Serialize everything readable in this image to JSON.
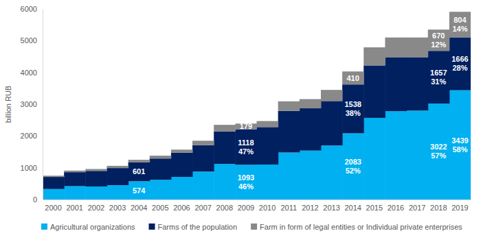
{
  "chart_data": {
    "type": "bar",
    "stacked": true,
    "grid": false,
    "legend": "bottom",
    "y_label": "billion RUB",
    "categories": [
      "2000",
      "2001",
      "2002",
      "2003",
      "2004",
      "2005",
      "2006",
      "2007",
      "2008",
      "2009",
      "2010",
      "2011",
      "2012",
      "2013",
      "2014",
      "2015",
      "2016",
      "2017",
      "2018",
      "2019"
    ],
    "ylim": [
      0,
      6000
    ],
    "yticks": [
      0,
      1000,
      2000,
      3000,
      4000,
      5000,
      6000
    ],
    "series": [
      {
        "name": "Agricultural organizations",
        "color": "#00b0f0",
        "values": [
          330,
          420,
          410,
          450,
          574,
          620,
          710,
          880,
          1120,
          1093,
          1100,
          1480,
          1540,
          1700,
          2083,
          2570,
          2780,
          2800,
          3022,
          3439
        ],
        "value_labels": [
          null,
          null,
          null,
          null,
          "574",
          null,
          null,
          null,
          null,
          "1093",
          null,
          null,
          null,
          null,
          "2083",
          null,
          null,
          null,
          "3022",
          "3439"
        ],
        "shares": [
          null,
          null,
          null,
          null,
          null,
          null,
          null,
          null,
          null,
          46,
          null,
          null,
          null,
          null,
          52,
          null,
          null,
          null,
          57,
          58
        ],
        "share_labels": [
          null,
          null,
          null,
          null,
          null,
          null,
          null,
          null,
          null,
          "46%",
          null,
          null,
          null,
          null,
          "52%",
          null,
          null,
          null,
          "57%",
          "58%"
        ]
      },
      {
        "name": "Farms of the population",
        "color": "#002060",
        "values": [
          380,
          440,
          490,
          540,
          601,
          670,
          760,
          830,
          1020,
          1118,
          1180,
          1310,
          1330,
          1400,
          1538,
          1650,
          1700,
          1680,
          1657,
          1666
        ],
        "value_labels": [
          null,
          null,
          null,
          null,
          "601",
          null,
          null,
          null,
          null,
          "1118",
          null,
          null,
          null,
          null,
          "1538",
          null,
          null,
          null,
          "1657",
          "1666"
        ],
        "shares": [
          null,
          null,
          null,
          null,
          null,
          null,
          null,
          null,
          null,
          47,
          null,
          null,
          null,
          null,
          38,
          null,
          null,
          null,
          31,
          28
        ],
        "share_labels": [
          null,
          null,
          null,
          null,
          null,
          null,
          null,
          null,
          null,
          "47%",
          null,
          null,
          null,
          null,
          "38%",
          null,
          null,
          null,
          "31%",
          "28%"
        ]
      },
      {
        "name": "Farm in form of legal entities or Individual private enterprises",
        "color": "#898989",
        "values": [
          40,
          50,
          60,
          70,
          75,
          90,
          100,
          140,
          210,
          179,
          190,
          300,
          290,
          350,
          410,
          570,
          620,
          620,
          670,
          804
        ],
        "value_labels": [
          null,
          null,
          null,
          null,
          null,
          null,
          null,
          null,
          null,
          "179",
          null,
          null,
          null,
          null,
          "410",
          null,
          null,
          null,
          "670",
          "804"
        ],
        "shares": [
          null,
          null,
          null,
          null,
          null,
          null,
          null,
          null,
          null,
          null,
          null,
          null,
          null,
          null,
          null,
          null,
          null,
          null,
          12,
          14
        ],
        "share_labels": [
          null,
          null,
          null,
          null,
          null,
          null,
          null,
          null,
          null,
          null,
          null,
          null,
          null,
          null,
          null,
          null,
          null,
          null,
          "12%",
          "14%"
        ]
      }
    ]
  }
}
